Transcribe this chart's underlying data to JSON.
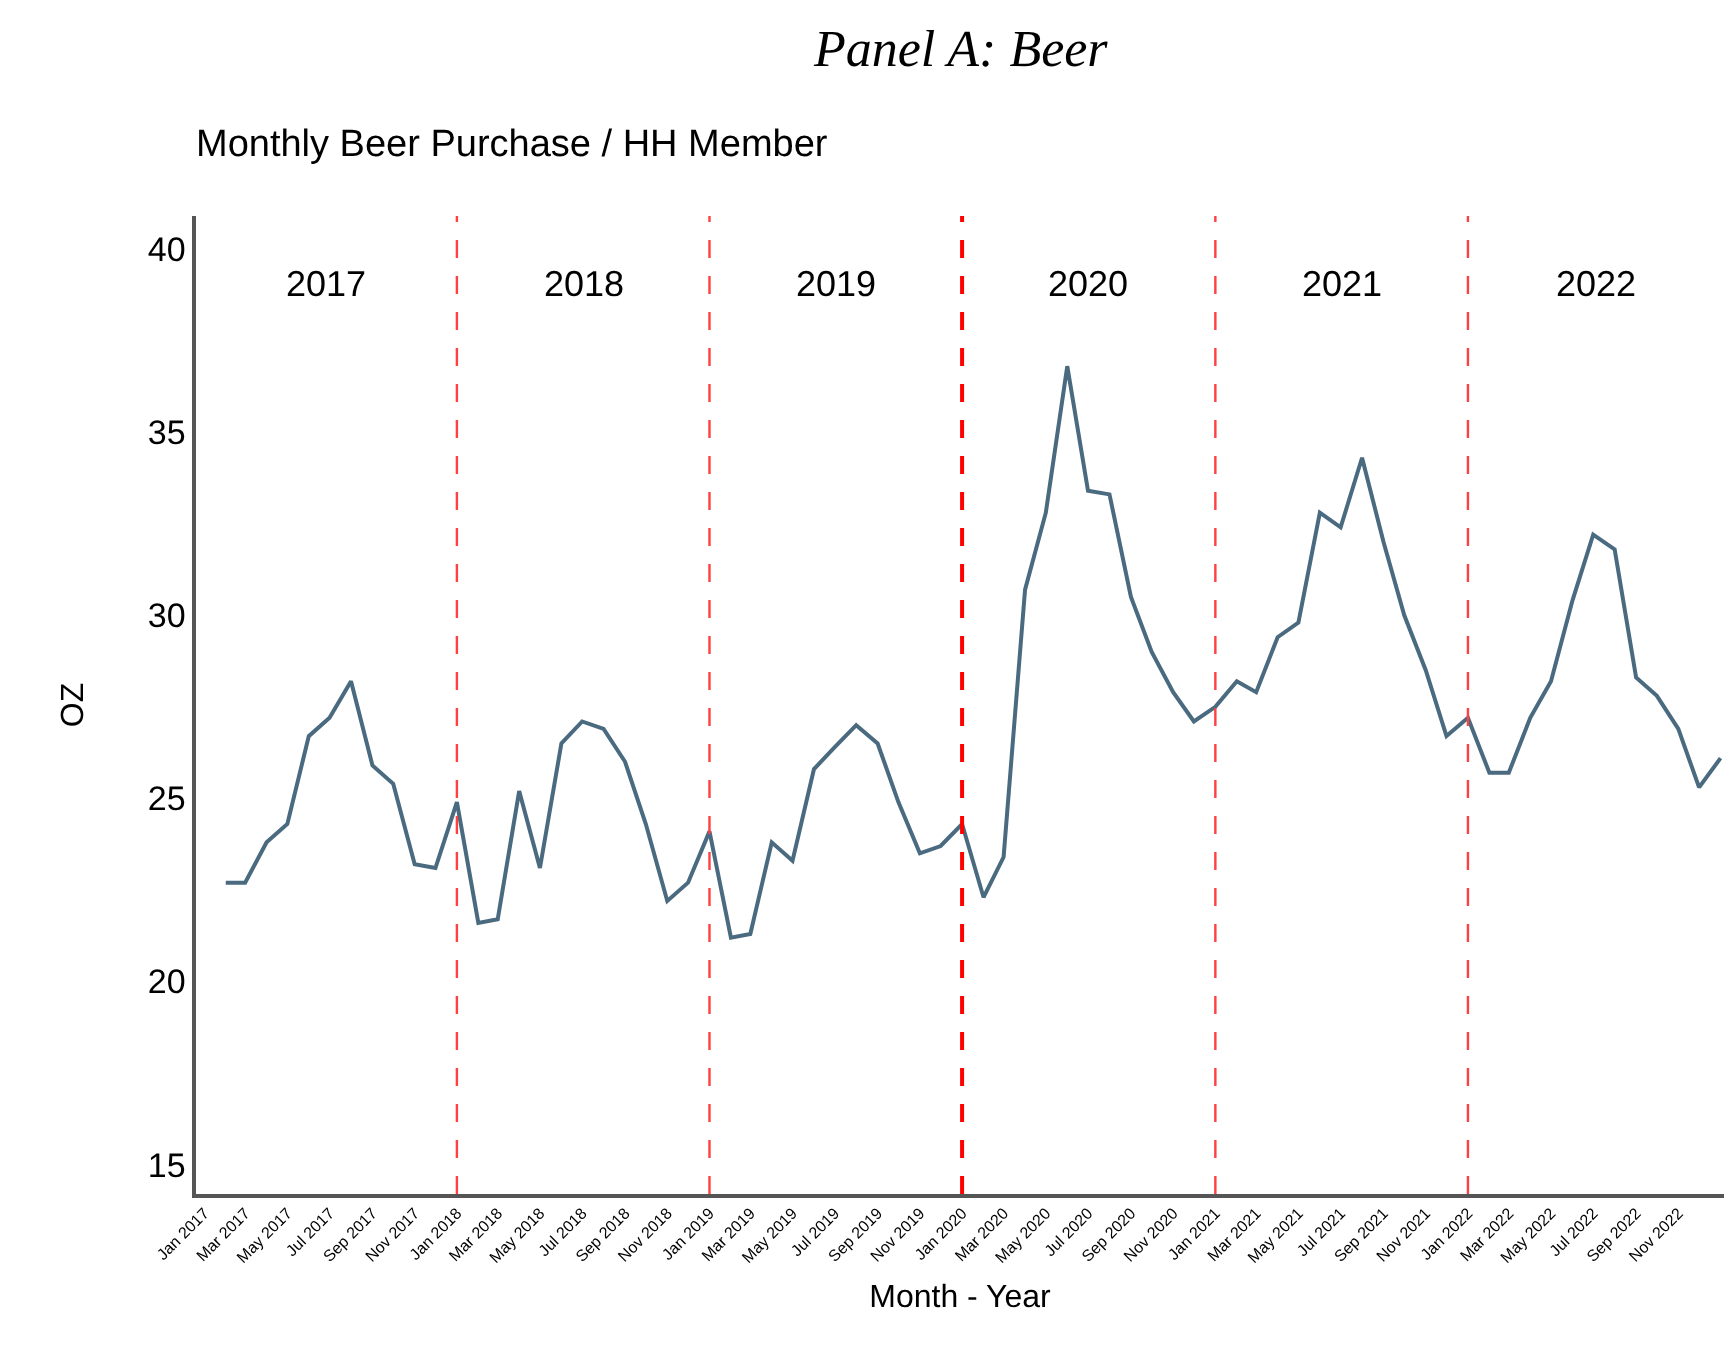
{
  "chart_data": {
    "type": "line",
    "title": "Panel A: Beer",
    "subtitle": "Monthly Beer Purchase / HH Member",
    "xlabel": "Month - Year",
    "ylabel": "OZ",
    "x": [
      "2017-02",
      "2017-03",
      "2017-04",
      "2017-05",
      "2017-06",
      "2017-07",
      "2017-08",
      "2017-09",
      "2017-10",
      "2017-11",
      "2017-12",
      "2018-01",
      "2018-02",
      "2018-03",
      "2018-04",
      "2018-05",
      "2018-06",
      "2018-07",
      "2018-08",
      "2018-09",
      "2018-10",
      "2018-11",
      "2018-12",
      "2019-01",
      "2019-02",
      "2019-03",
      "2019-04",
      "2019-05",
      "2019-06",
      "2019-07",
      "2019-08",
      "2019-09",
      "2019-10",
      "2019-11",
      "2019-12",
      "2020-01",
      "2020-02",
      "2020-03",
      "2020-04",
      "2020-05",
      "2020-06",
      "2020-07",
      "2020-08",
      "2020-09",
      "2020-10",
      "2020-11",
      "2020-12",
      "2021-01",
      "2021-02",
      "2021-03",
      "2021-04",
      "2021-05",
      "2021-06",
      "2021-07",
      "2021-08",
      "2021-09",
      "2021-10",
      "2021-11",
      "2021-12",
      "2022-01",
      "2022-02",
      "2022-03",
      "2022-04",
      "2022-05",
      "2022-06",
      "2022-07",
      "2022-08",
      "2022-09",
      "2022-10",
      "2022-11",
      "2022-12",
      "2023-01"
    ],
    "series": [
      {
        "color": "#4a6a80",
        "values": [
          22.7,
          22.7,
          23.8,
          24.3,
          26.7,
          27.2,
          28.2,
          25.9,
          25.4,
          23.2,
          23.1,
          24.9,
          21.6,
          21.7,
          25.2,
          23.1,
          26.5,
          27.1,
          26.9,
          26.0,
          24.3,
          22.2,
          22.7,
          24.1,
          21.2,
          21.3,
          23.8,
          23.3,
          25.8,
          26.4,
          27.0,
          26.5,
          24.9,
          23.5,
          23.7,
          24.3,
          22.3,
          23.4,
          30.7,
          32.8,
          36.8,
          33.4,
          33.3,
          30.5,
          29.0,
          27.9,
          27.1,
          27.5,
          28.2,
          27.9,
          29.4,
          29.8,
          32.8,
          32.4,
          34.3,
          32.0,
          30.0,
          28.5,
          26.7,
          27.2,
          25.7,
          25.7,
          27.2,
          28.2,
          30.4,
          32.2,
          31.8,
          28.3,
          27.8,
          26.9,
          25.3,
          26.1
        ]
      }
    ],
    "xlim": [
      "2016-12-20",
      "2023-01-06"
    ],
    "ylim": [
      14.2,
      40.9
    ],
    "yticks": [
      15,
      20,
      25,
      30,
      35,
      40
    ],
    "xticks": [
      {
        "value": "2017-01",
        "label": "Jan 2017"
      },
      {
        "value": "2017-03",
        "label": "Mar 2017"
      },
      {
        "value": "2017-05",
        "label": "May 2017"
      },
      {
        "value": "2017-07",
        "label": "Jul 2017"
      },
      {
        "value": "2017-09",
        "label": "Sep 2017"
      },
      {
        "value": "2017-11",
        "label": "Nov 2017"
      },
      {
        "value": "2018-01",
        "label": "Jan 2018"
      },
      {
        "value": "2018-03",
        "label": "Mar 2018"
      },
      {
        "value": "2018-05",
        "label": "May 2018"
      },
      {
        "value": "2018-07",
        "label": "Jul 2018"
      },
      {
        "value": "2018-09",
        "label": "Sep 2018"
      },
      {
        "value": "2018-11",
        "label": "Nov 2018"
      },
      {
        "value": "2019-01",
        "label": "Jan 2019"
      },
      {
        "value": "2019-03",
        "label": "Mar 2019"
      },
      {
        "value": "2019-05",
        "label": "May 2019"
      },
      {
        "value": "2019-07",
        "label": "Jul 2019"
      },
      {
        "value": "2019-09",
        "label": "Sep 2019"
      },
      {
        "value": "2019-11",
        "label": "Nov 2019"
      },
      {
        "value": "2020-01",
        "label": "Jan 2020"
      },
      {
        "value": "2020-03",
        "label": "Mar 2020"
      },
      {
        "value": "2020-05",
        "label": "May 2020"
      },
      {
        "value": "2020-07",
        "label": "Jul 2020"
      },
      {
        "value": "2020-09",
        "label": "Sep 2020"
      },
      {
        "value": "2020-11",
        "label": "Nov 2020"
      },
      {
        "value": "2021-01",
        "label": "Jan 2021"
      },
      {
        "value": "2021-03",
        "label": "Mar 2021"
      },
      {
        "value": "2021-05",
        "label": "May 2021"
      },
      {
        "value": "2021-07",
        "label": "Jul 2021"
      },
      {
        "value": "2021-09",
        "label": "Sep 2021"
      },
      {
        "value": "2021-11",
        "label": "Nov 2021"
      },
      {
        "value": "2022-01",
        "label": "Jan 2022"
      },
      {
        "value": "2022-03",
        "label": "Mar 2022"
      },
      {
        "value": "2022-05",
        "label": "May 2022"
      },
      {
        "value": "2022-07",
        "label": "Jul 2022"
      },
      {
        "value": "2022-09",
        "label": "Sep 2022"
      },
      {
        "value": "2022-11",
        "label": "Nov 2022"
      }
    ],
    "ref_lines": [
      {
        "axis": "x",
        "value": "2018-01",
        "color": "#ff4040",
        "line_style": "dashed"
      },
      {
        "axis": "x",
        "value": "2019-01",
        "color": "#ff4040",
        "line_style": "dashed"
      },
      {
        "axis": "x",
        "value": "2020-01",
        "color": "#ff0000",
        "line_style": "dashed"
      },
      {
        "axis": "x",
        "value": "2021-01",
        "color": "#ff4040",
        "line_style": "dashed"
      },
      {
        "axis": "x",
        "value": "2022-01",
        "color": "#ff4040",
        "line_style": "dashed"
      }
    ],
    "annotations": [
      "2017",
      "2018",
      "2019",
      "2020",
      "2021",
      "2022"
    ],
    "marker": "none",
    "line_style": "solid"
  }
}
